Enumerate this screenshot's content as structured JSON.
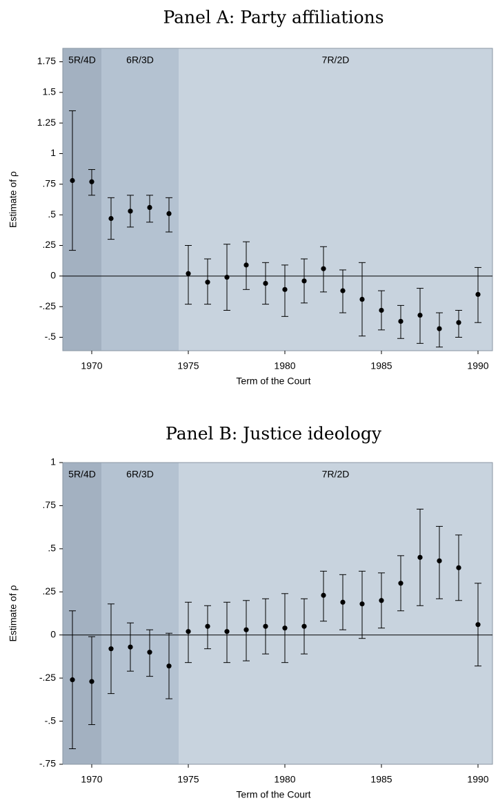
{
  "chart_data": [
    {
      "type": "errorbar",
      "title": "Panel A: Party affiliations",
      "xlabel": "Term of the Court",
      "ylabel": "Estimate of ρ",
      "xlim": [
        1968.5,
        1990.75
      ],
      "ylim": [
        -0.61,
        1.86
      ],
      "xticks": [
        1970,
        1975,
        1980,
        1985,
        1990
      ],
      "yticks": [
        {
          "value": -0.5,
          "label": "-.5"
        },
        {
          "value": -0.25,
          "label": "-.25"
        },
        0,
        {
          "value": 0.25,
          "label": ".25"
        },
        {
          "value": 0.5,
          "label": ".5"
        },
        {
          "value": 0.75,
          "label": ".75"
        },
        1,
        1.25,
        1.5,
        1.75
      ],
      "hline": 0,
      "regions": [
        {
          "label": "5R/4D",
          "start": 1968.5,
          "end": 1970.5,
          "color": "#a3b1c1"
        },
        {
          "label": "6R/3D",
          "start": 1970.5,
          "end": 1974.5,
          "color": "#b4c2d1"
        },
        {
          "label": "7R/2D",
          "start": 1974.5,
          "end": 1990.75,
          "color": "#c8d3de"
        }
      ],
      "x": [
        1969,
        1970,
        1971,
        1972,
        1973,
        1974,
        1975,
        1976,
        1977,
        1978,
        1979,
        1980,
        1981,
        1982,
        1983,
        1984,
        1985,
        1986,
        1987,
        1988,
        1989,
        1990
      ],
      "values": [
        0.78,
        0.77,
        0.47,
        0.53,
        0.56,
        0.51,
        0.02,
        -0.05,
        -0.01,
        0.09,
        -0.06,
        -0.11,
        -0.04,
        0.06,
        -0.12,
        -0.19,
        -0.28,
        -0.37,
        -0.32,
        -0.43,
        -0.38,
        -0.15
      ],
      "lower": [
        0.21,
        0.66,
        0.3,
        0.4,
        0.44,
        0.36,
        -0.23,
        -0.23,
        -0.28,
        -0.11,
        -0.23,
        -0.33,
        -0.22,
        -0.13,
        -0.3,
        -0.49,
        -0.44,
        -0.51,
        -0.55,
        -0.58,
        -0.5,
        -0.38
      ],
      "upper": [
        1.35,
        0.87,
        0.64,
        0.66,
        0.66,
        0.64,
        0.25,
        0.14,
        0.26,
        0.28,
        0.11,
        0.09,
        0.14,
        0.24,
        0.05,
        0.11,
        -0.12,
        -0.24,
        -0.1,
        -0.3,
        -0.28,
        0.07
      ]
    },
    {
      "type": "errorbar",
      "title": "Panel B: Justice ideology",
      "xlabel": "Term of the Court",
      "ylabel": "Estimate of ρ",
      "xlim": [
        1968.5,
        1990.75
      ],
      "ylim": [
        -0.75,
        1
      ],
      "xticks": [
        1970,
        1975,
        1980,
        1985,
        1990
      ],
      "yticks": [
        {
          "value": -0.75,
          "label": "-.75"
        },
        {
          "value": -0.5,
          "label": "-.5"
        },
        {
          "value": -0.25,
          "label": "-.25"
        },
        0,
        {
          "value": 0.25,
          "label": ".25"
        },
        {
          "value": 0.5,
          "label": ".5"
        },
        {
          "value": 0.75,
          "label": ".75"
        },
        1
      ],
      "hline": 0,
      "regions": [
        {
          "label": "5R/4D",
          "start": 1968.5,
          "end": 1970.5,
          "color": "#a3b1c1"
        },
        {
          "label": "6R/3D",
          "start": 1970.5,
          "end": 1974.5,
          "color": "#b4c2d1"
        },
        {
          "label": "7R/2D",
          "start": 1974.5,
          "end": 1990.75,
          "color": "#c8d3de"
        }
      ],
      "x": [
        1969,
        1970,
        1971,
        1972,
        1973,
        1974,
        1975,
        1976,
        1977,
        1978,
        1979,
        1980,
        1981,
        1982,
        1983,
        1984,
        1985,
        1986,
        1987,
        1988,
        1989,
        1990
      ],
      "values": [
        -0.26,
        -0.27,
        -0.08,
        -0.07,
        -0.1,
        -0.18,
        0.02,
        0.05,
        0.02,
        0.03,
        0.05,
        0.04,
        0.05,
        0.23,
        0.19,
        0.18,
        0.2,
        0.3,
        0.45,
        0.43,
        0.39,
        0.06
      ],
      "lower": [
        -0.66,
        -0.52,
        -0.34,
        -0.21,
        -0.24,
        -0.37,
        -0.16,
        -0.08,
        -0.16,
        -0.15,
        -0.11,
        -0.16,
        -0.11,
        0.08,
        0.03,
        -0.02,
        0.04,
        0.14,
        0.17,
        0.21,
        0.2,
        -0.18
      ],
      "upper": [
        0.14,
        -0.01,
        0.18,
        0.07,
        0.03,
        0.01,
        0.19,
        0.17,
        0.19,
        0.2,
        0.21,
        0.24,
        0.21,
        0.37,
        0.35,
        0.37,
        0.36,
        0.46,
        0.73,
        0.63,
        0.58,
        0.3
      ]
    }
  ]
}
